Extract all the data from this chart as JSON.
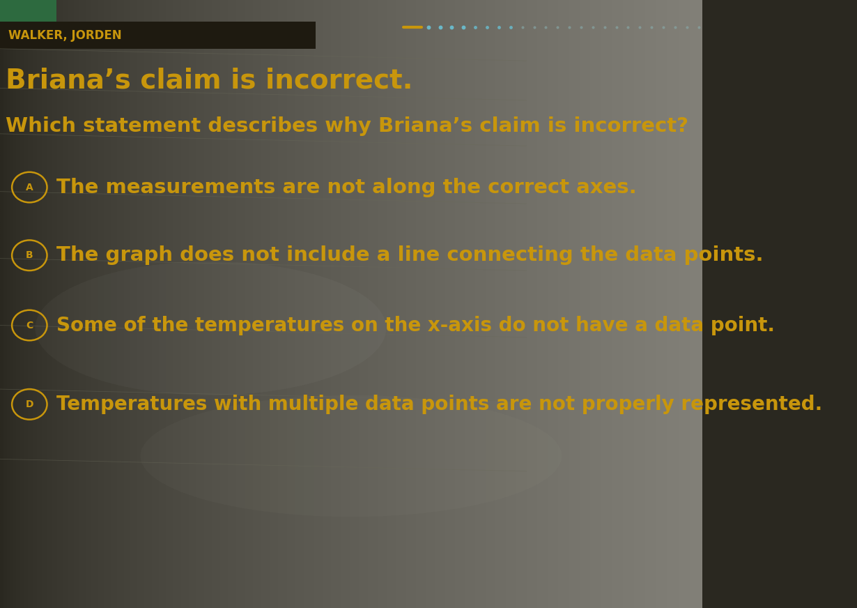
{
  "header_text": "WALKER, JORDEN",
  "statement": "Briana’s claim is incorrect.",
  "question": "Which statement describes why Briana’s claim is incorrect?",
  "options": [
    {
      "label": "A",
      "text": "The measurements are not along the correct axes."
    },
    {
      "label": "B",
      "text": "The graph does not include a line connecting the data points."
    },
    {
      "label": "C",
      "text": "Some of the temperatures on the x-axis do not have a data point."
    },
    {
      "label": "D",
      "text": "Temperatures with multiple data points are not properly represented."
    }
  ],
  "bg_color": "#2a2820",
  "bg_color_right": "#8a8880",
  "text_color": "#c8960c",
  "header_color": "#c8960c",
  "circle_color": "#c8960c",
  "header_bg": "#1e1c14",
  "green_bar_color": "#2d6a3f",
  "dash_color": "#c8960c",
  "dot_color_near": "#6ab8c8",
  "dot_color_far": "#88aaaa",
  "separator_color": "#6a6a5a",
  "figsize": [
    12.3,
    8.72
  ],
  "dpi": 100
}
